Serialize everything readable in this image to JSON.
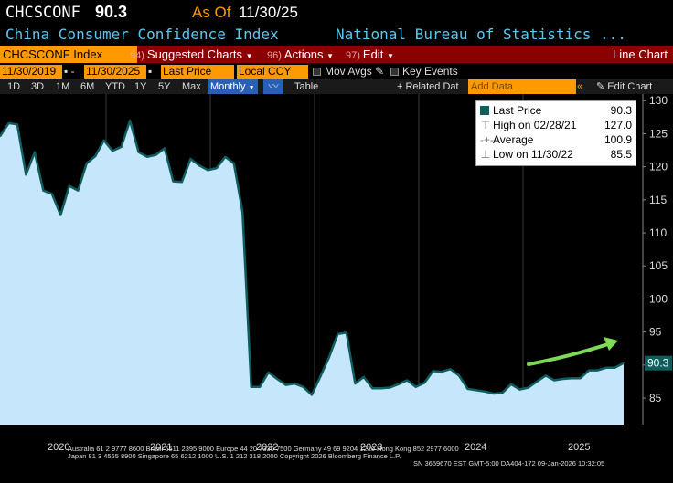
{
  "header": {
    "ticker": "CHCSCONF",
    "last_value": "90.3",
    "as_of_label": "As Of",
    "as_of_date": "11/30/25",
    "description": "China Consumer Confidence Index",
    "source": "National Bureau of Statistics ..."
  },
  "toolbar": {
    "ticker_field": "CHCSCONF Index",
    "suggested_num": "94)",
    "suggested_label": "Suggested Charts",
    "actions_num": "96)",
    "actions_label": "Actions",
    "edit_num": "97)",
    "edit_label": "Edit",
    "chart_type": "Line Chart"
  },
  "settings": {
    "start_date": "11/30/2019",
    "end_date": "11/30/2025",
    "field": "Last Price",
    "currency": "Local CCY",
    "mov_avgs": "Mov Avgs",
    "key_events": "Key Events"
  },
  "periods": {
    "items": [
      "1D",
      "3D",
      "1M",
      "6M",
      "YTD",
      "1Y",
      "5Y",
      "Max"
    ],
    "frequency": "Monthly",
    "table": "Table",
    "related": "+ Related Dat",
    "add_data_placeholder": "Add Data",
    "edit_chart": "Edit Chart"
  },
  "legend": {
    "last_label": "Last Price",
    "last_value": "90.3",
    "high_label": "High on 02/28/21",
    "high_value": "127.0",
    "avg_label": "Average",
    "avg_value": "100.9",
    "low_label": "Low on 11/30/22",
    "low_value": "85.5"
  },
  "footer": {
    "years": [
      "2020",
      "2021",
      "2022",
      "2023",
      "2024",
      "2025"
    ],
    "line1": "Australia 61 2 9777 8600  Brazil 5511 2395 9000  Europe 44 20 7330 7500  Germany 49 69 9204 1210  Hong Kong 852 2977 6000",
    "line2": "Japan 81 3 4565 8900         Singapore 65 6212 1000        U.S. 1 212 318 2000        Copyright 2026 Bloomberg Finance L.P.",
    "line3": "SN 3659670 EST  GMT-5:00 DA404-172 09-Jan-2026 10:32:05"
  },
  "colors": {
    "line": "#0e5e5e",
    "fill": "#c6e7fb",
    "arrow": "#7ed957",
    "accent": "#ff9900",
    "toolbar": "#8b0000"
  },
  "chart_data": {
    "type": "area",
    "frequency": "monthly",
    "x_start": "2019-11",
    "x_end": "2025-11",
    "ylim": [
      81,
      131
    ],
    "yticks": [
      85,
      90,
      95,
      100,
      105,
      110,
      115,
      120,
      125,
      130
    ],
    "last_value_label": "90.3",
    "values": [
      124.6,
      126.6,
      126.4,
      118.8,
      122.2,
      116.4,
      115.9,
      112.7,
      117.1,
      116.4,
      120.5,
      121.6,
      124.0,
      122.4,
      123.0,
      127.0,
      122.2,
      121.5,
      121.8,
      122.8,
      117.8,
      117.7,
      121.2,
      120.2,
      119.5,
      119.8,
      121.5,
      120.5,
      113.2,
      86.7,
      86.7,
      88.9,
      87.9,
      87.0,
      87.2,
      86.7,
      85.5,
      88.3,
      91.2,
      94.7,
      94.9,
      87.2,
      88.2,
      86.5,
      86.5,
      86.6,
      87.1,
      87.7,
      86.7,
      87.3,
      89.1,
      89.0,
      89.4,
      88.4,
      86.4,
      86.2,
      86.0,
      85.7,
      85.8,
      87.1,
      86.3,
      86.6,
      87.5,
      88.4,
      87.7,
      87.9,
      88.0,
      88.0,
      89.2,
      89.2,
      89.6,
      89.6,
      90.3
    ]
  }
}
